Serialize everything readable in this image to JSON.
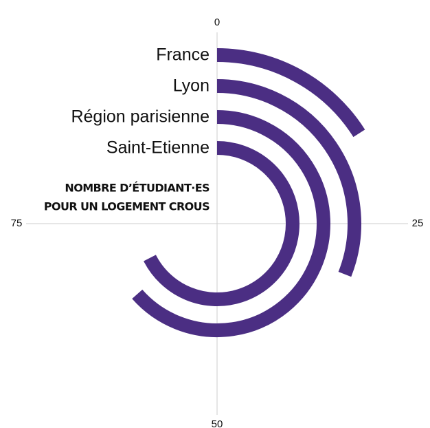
{
  "chart_data": {
    "type": "radial_bar",
    "title_lines": [
      "NOMBRE D’ÉTUDIANT·ES",
      "POUR UN LOGEMENT CROUS"
    ],
    "categories": [
      "France",
      "Lyon",
      "Région parisienne",
      "Saint-Etienne"
    ],
    "values": [
      16,
      31,
      63.5,
      67.5
    ],
    "color": "#4b2e83",
    "xlim": [
      0,
      100
    ],
    "xticks": [
      0,
      25,
      50,
      75
    ],
    "grid": true
  }
}
